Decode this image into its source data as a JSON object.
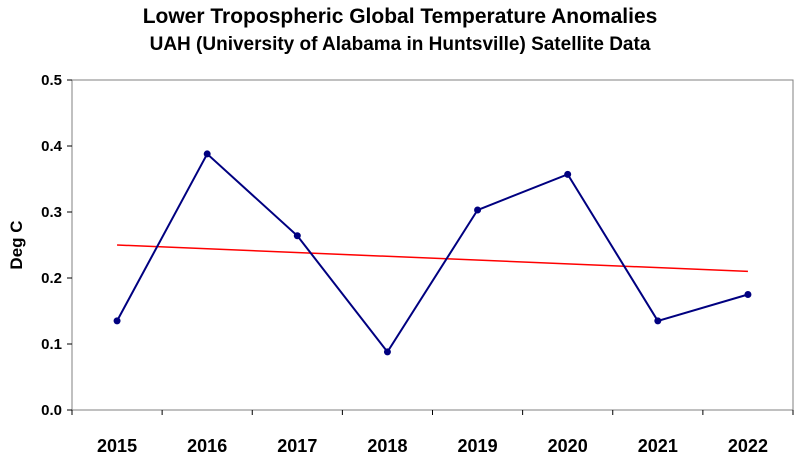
{
  "chart_data": {
    "type": "line",
    "title": "Lower Tropospheric Global Temperature Anomalies",
    "subtitle": "UAH (University of Alabama in Huntsville) Satellite Data",
    "xlabel": "",
    "ylabel": "Deg C",
    "categories": [
      "2015",
      "2016",
      "2017",
      "2018",
      "2019",
      "2020",
      "2021",
      "2022"
    ],
    "series": [
      {
        "values": [
          0.135,
          0.388,
          0.264,
          0.088,
          0.303,
          0.357,
          0.135,
          0.175
        ],
        "color": "#000080"
      }
    ],
    "trendline": {
      "start": 0.25,
      "end": 0.21,
      "color": "#ff0000"
    },
    "ylim": [
      0,
      0.5
    ],
    "yticks": [
      "0.0",
      "0.1",
      "0.2",
      "0.3",
      "0.4",
      "0.5"
    ],
    "grid": false,
    "legend": "none"
  }
}
